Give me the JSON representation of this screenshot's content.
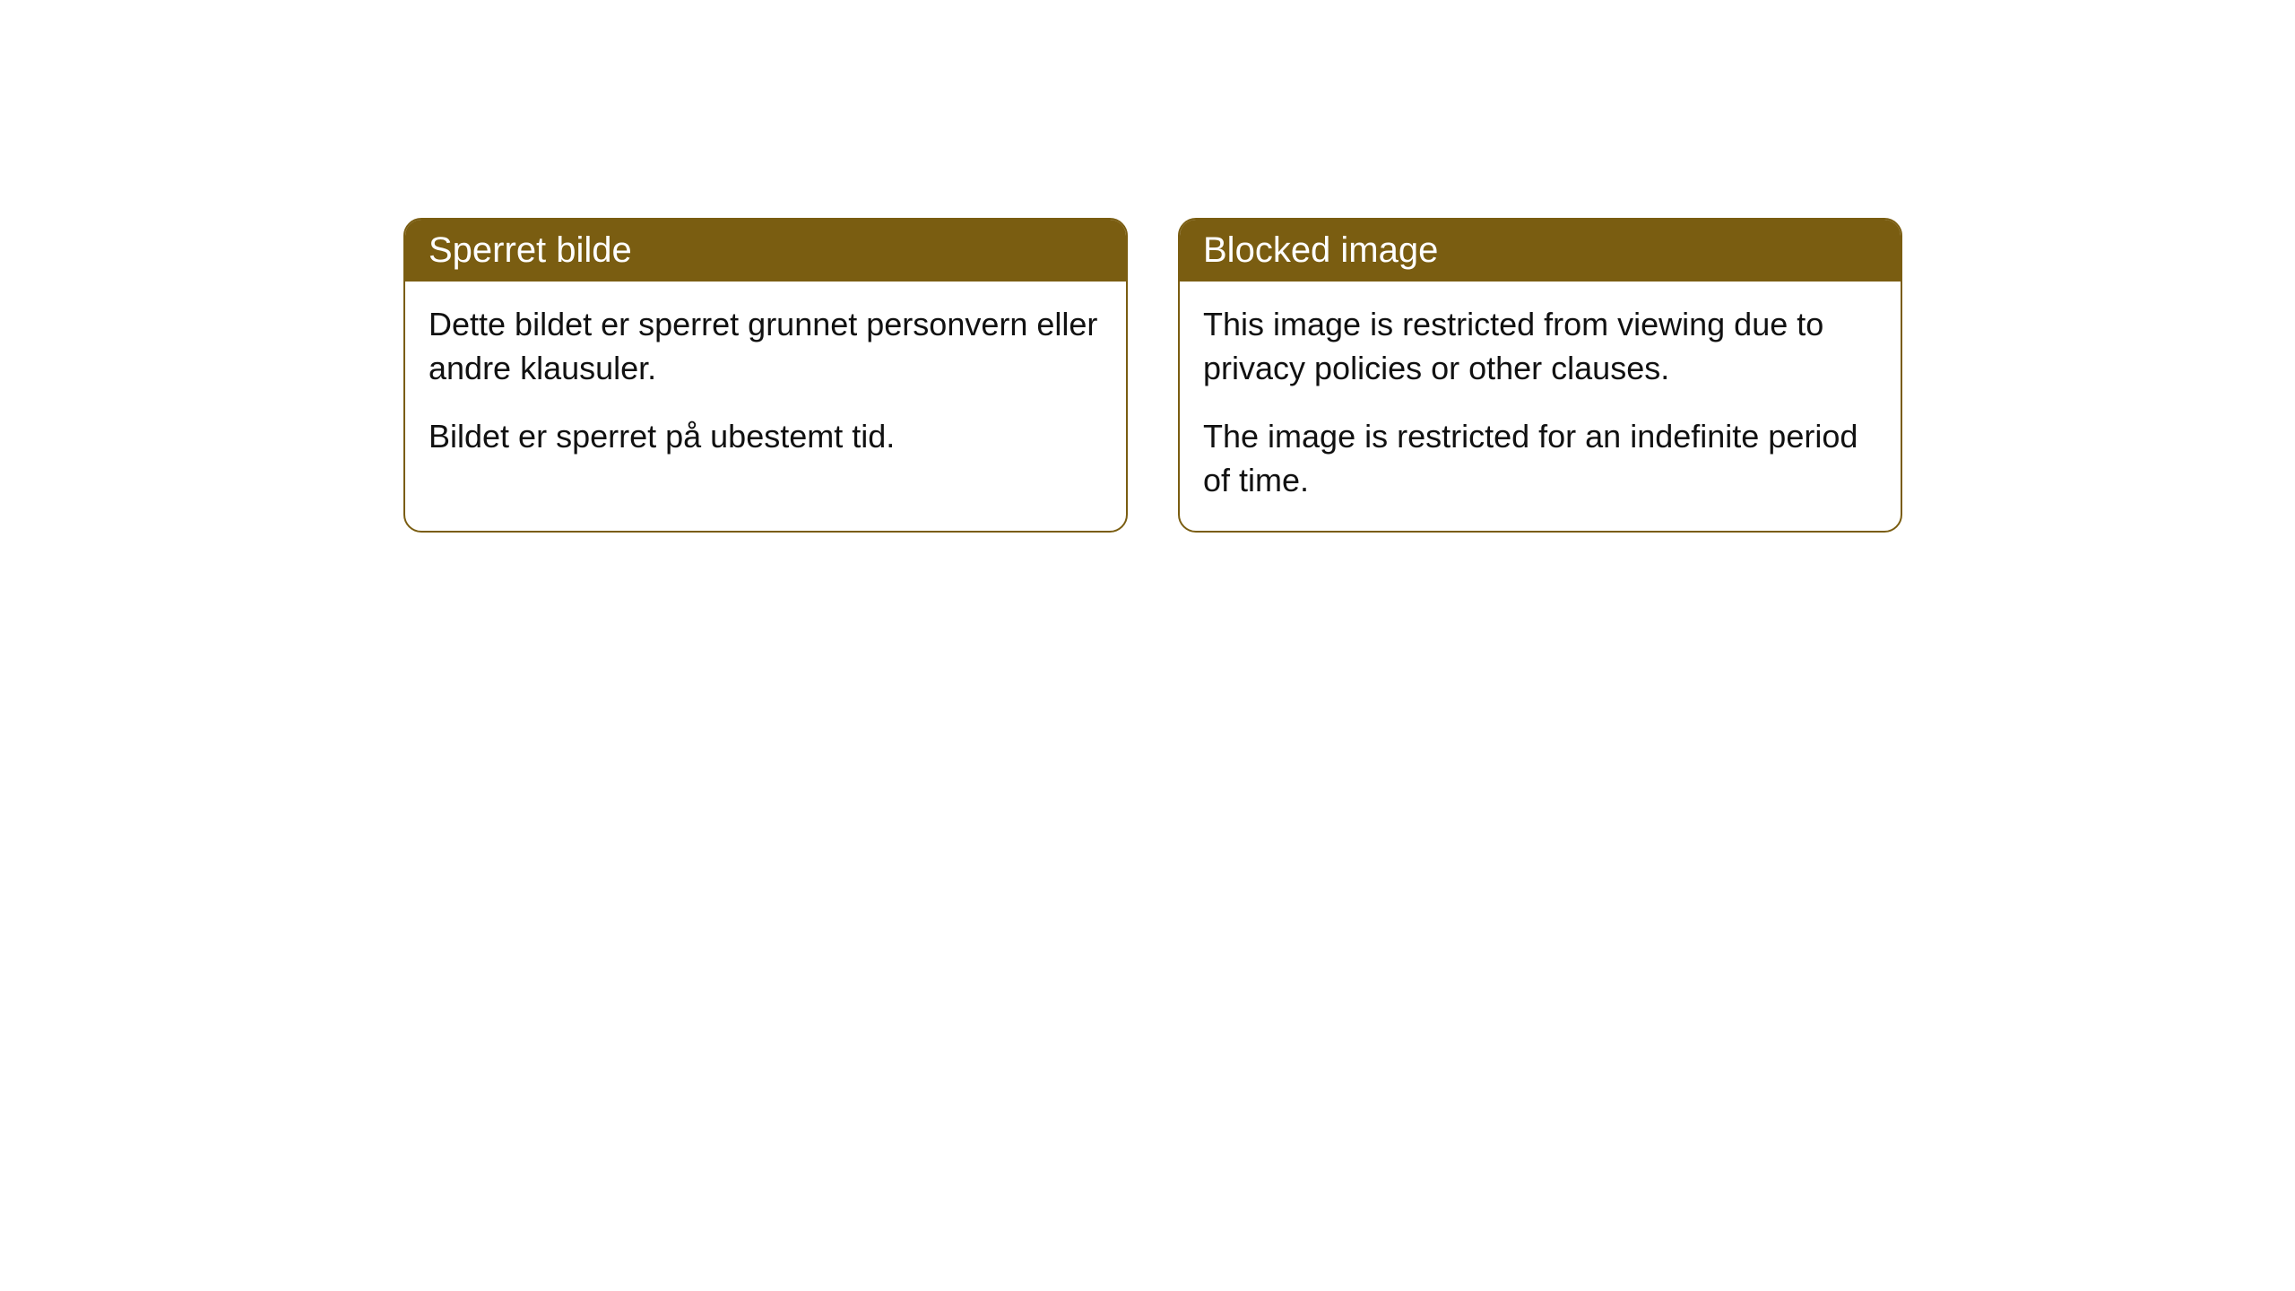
{
  "cards": [
    {
      "title": "Sperret bilde",
      "paragraph1": "Dette bildet er sperret grunnet personvern eller andre klausuler.",
      "paragraph2": "Bildet er sperret på ubestemt tid."
    },
    {
      "title": "Blocked image",
      "paragraph1": "This image is restricted from viewing due to privacy policies or other clauses.",
      "paragraph2": "The image is restricted for an indefinite period of time."
    }
  ],
  "styling": {
    "header_background": "#7a5d11",
    "header_text_color": "#ffffff",
    "border_color": "#7a5d11",
    "body_background": "#ffffff",
    "body_text_color": "#111111",
    "border_radius": 20,
    "title_fontsize": 40,
    "body_fontsize": 36
  }
}
